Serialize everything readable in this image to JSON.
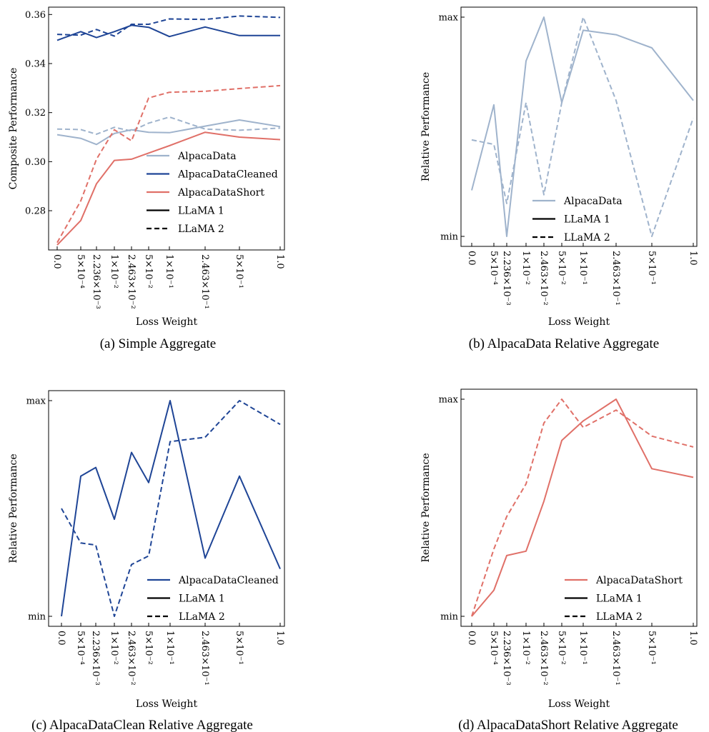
{
  "figure": {
    "colors": {
      "AlpacaData": "#9fb3cc",
      "AlpacaDataCleaned": "#1f4596",
      "AlpacaDataShort": "#e07068",
      "black": "#000000"
    }
  },
  "chart_data": [
    {
      "type": "line",
      "caption": "(a) Simple Aggregate",
      "xlabel": "Loss Weight",
      "ylabel": "Composite Performance",
      "x": [
        0,
        1,
        2,
        3,
        4,
        5,
        6,
        7,
        8,
        9
      ],
      "x_tick_labels": [
        "0.0",
        "5×10⁻⁴",
        "2.236×10⁻³",
        "1×10⁻²",
        "2.463×10⁻²",
        "5×10⁻²",
        "1×10⁻¹",
        "2.463×10⁻¹",
        "5×10⁻¹",
        "1.0"
      ],
      "y_ticks": [
        "0.28",
        "0.30",
        "0.32",
        "0.34",
        "0.36"
      ],
      "ylim": [
        0.264,
        0.363
      ],
      "series": [
        {
          "name": "AlpacaData",
          "model": "LLaMA 1",
          "values": [
            0.311,
            0.3095,
            0.307,
            0.3115,
            0.313,
            0.312,
            0.3118,
            0.3145,
            0.317,
            0.3143
          ]
        },
        {
          "name": "AlpacaData",
          "model": "LLaMA 2",
          "values": [
            0.3133,
            0.3131,
            0.3112,
            0.314,
            0.3125,
            0.3157,
            0.3182,
            0.3133,
            0.3128,
            0.3137
          ]
        },
        {
          "name": "AlpacaDataCleaned",
          "model": "LLaMA 1",
          "values": [
            0.3495,
            0.353,
            0.3506,
            0.353,
            0.3556,
            0.3548,
            0.351,
            0.3549,
            0.3514,
            0.3514
          ]
        },
        {
          "name": "AlpacaDataCleaned",
          "model": "LLaMA 2",
          "values": [
            0.3519,
            0.3516,
            0.3539,
            0.3512,
            0.356,
            0.356,
            0.3582,
            0.358,
            0.3594,
            0.3588
          ]
        },
        {
          "name": "AlpacaDataShort",
          "model": "LLaMA 1",
          "values": [
            0.266,
            0.276,
            0.291,
            0.3005,
            0.301,
            0.3035,
            0.3065,
            0.312,
            0.31,
            0.309
          ]
        },
        {
          "name": "AlpacaDataShort",
          "model": "LLaMA 2",
          "values": [
            0.267,
            0.284,
            0.301,
            0.313,
            0.3085,
            0.326,
            0.3283,
            0.3287,
            0.3298,
            0.331
          ]
        }
      ],
      "legend": [
        {
          "label": "AlpacaData",
          "color": "#9fb3cc",
          "style": "solid"
        },
        {
          "label": "AlpacaDataCleaned",
          "color": "#1f4596",
          "style": "solid"
        },
        {
          "label": "AlpacaDataShort",
          "color": "#e07068",
          "style": "solid"
        },
        {
          "label": "LLaMA 1",
          "color": "#000000",
          "style": "solid"
        },
        {
          "label": "LLaMA 2",
          "color": "#000000",
          "style": "dashed"
        }
      ]
    },
    {
      "type": "line",
      "caption": "(b) AlpacaData Relative Aggregate",
      "xlabel": "Loss Weight",
      "ylabel": "Relative Performance",
      "x": [
        0,
        1,
        2,
        3,
        4,
        5,
        6,
        7,
        8,
        9
      ],
      "x_tick_labels": [
        "0.0",
        "5×10⁻⁴",
        "2.236×10⁻³",
        "1×10⁻²",
        "2.463×10⁻²",
        "5×10⁻²",
        "1×10⁻¹",
        "2.463×10⁻¹",
        "5×10⁻¹",
        "1.0"
      ],
      "y_ticks": [
        "min",
        "max"
      ],
      "ylim": [
        0,
        1
      ],
      "series": [
        {
          "name": "AlpacaData",
          "model": "LLaMA 1",
          "values": [
            0.21,
            0.6,
            0.0,
            0.8,
            1.0,
            0.61,
            0.94,
            0.92,
            0.86,
            0.62
          ]
        },
        {
          "name": "AlpacaData",
          "model": "LLaMA 2",
          "values": [
            0.44,
            0.42,
            0.15,
            0.61,
            0.19,
            0.61,
            1.0,
            0.62,
            0.0,
            0.54
          ]
        }
      ],
      "legend": [
        {
          "label": "AlpacaData",
          "color": "#9fb3cc",
          "style": "solid"
        },
        {
          "label": "LLaMA 1",
          "color": "#000000",
          "style": "solid"
        },
        {
          "label": "LLaMA 2",
          "color": "#000000",
          "style": "dashed"
        }
      ]
    },
    {
      "type": "line",
      "caption": "(c) AlpacaDataClean Relative Aggregate",
      "xlabel": "Loss Weight",
      "ylabel": "Relative Performance",
      "x": [
        0,
        1,
        2,
        3,
        4,
        5,
        6,
        7,
        8,
        9
      ],
      "x_tick_labels": [
        "0.0",
        "5×10⁻⁴",
        "2.236×10⁻³",
        "1×10⁻²",
        "2.463×10⁻²",
        "5×10⁻²",
        "1×10⁻¹",
        "2.463×10⁻¹",
        "5×10⁻¹",
        "1.0"
      ],
      "y_ticks": [
        "min",
        "max"
      ],
      "ylim": [
        0,
        1
      ],
      "series": [
        {
          "name": "AlpacaDataCleaned",
          "model": "LLaMA 1",
          "values": [
            0.0,
            0.65,
            0.69,
            0.45,
            0.76,
            0.62,
            1.0,
            0.27,
            0.65,
            0.22
          ]
        },
        {
          "name": "AlpacaDataCleaned",
          "model": "LLaMA 2",
          "values": [
            0.5,
            0.34,
            0.33,
            0.0,
            0.24,
            0.28,
            0.81,
            0.83,
            1.0,
            0.89
          ]
        }
      ],
      "legend": [
        {
          "label": "AlpacaDataCleaned",
          "color": "#1f4596",
          "style": "solid"
        },
        {
          "label": "LLaMA 1",
          "color": "#000000",
          "style": "solid"
        },
        {
          "label": "LLaMA 2",
          "color": "#000000",
          "style": "dashed"
        }
      ]
    },
    {
      "type": "line",
      "caption": "(d) AlpacaDataShort Relative Aggregate",
      "xlabel": "Loss Weight",
      "ylabel": "Relative Performance",
      "x": [
        0,
        1,
        2,
        3,
        4,
        5,
        6,
        7,
        8,
        9
      ],
      "x_tick_labels": [
        "0.0",
        "5×10⁻⁴",
        "2.236×10⁻³",
        "1×10⁻²",
        "2.463×10⁻²",
        "5×10⁻²",
        "1×10⁻¹",
        "2.463×10⁻¹",
        "5×10⁻¹",
        "1.0"
      ],
      "y_ticks": [
        "min",
        "max"
      ],
      "ylim": [
        0,
        1
      ],
      "series": [
        {
          "name": "AlpacaDataShort",
          "model": "LLaMA 1",
          "values": [
            0.0,
            0.12,
            0.28,
            0.3,
            0.53,
            0.81,
            0.9,
            1.0,
            0.68,
            0.64
          ]
        },
        {
          "name": "AlpacaDataShort",
          "model": "LLaMA 2",
          "values": [
            0.0,
            0.31,
            0.46,
            0.61,
            0.89,
            1.0,
            0.87,
            0.95,
            0.83,
            0.78
          ]
        }
      ],
      "legend": [
        {
          "label": "AlpacaDataShort",
          "color": "#e07068",
          "style": "solid"
        },
        {
          "label": "LLaMA 1",
          "color": "#000000",
          "style": "solid"
        },
        {
          "label": "LLaMA 2",
          "color": "#000000",
          "style": "dashed"
        }
      ]
    }
  ]
}
